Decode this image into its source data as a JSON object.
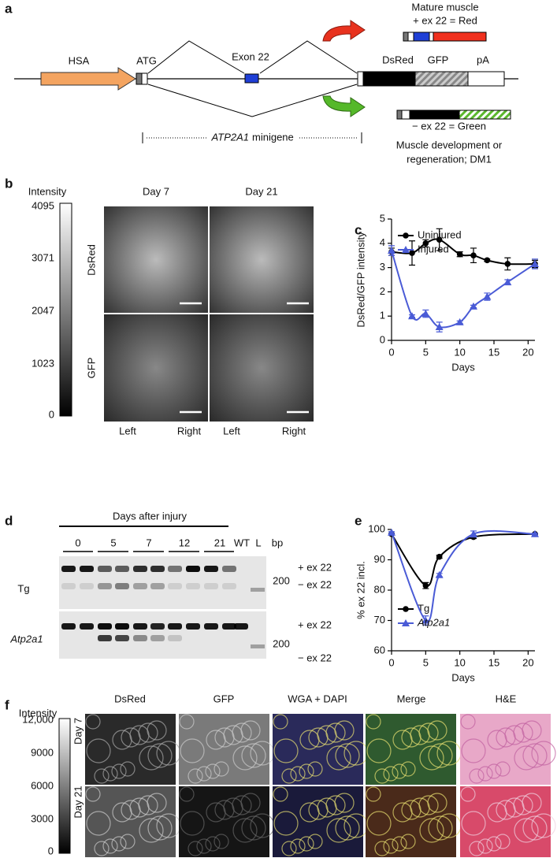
{
  "panel_labels": [
    "a",
    "b",
    "c",
    "d",
    "e",
    "f"
  ],
  "panel_a": {
    "mature_1": "Mature muscle",
    "mature_2": "+ ex 22 = Red",
    "hsa": "HSA",
    "atg": "ATG",
    "exon": "Exon 22",
    "dsred": "DsRed",
    "gfp": "GFP",
    "pa": "pA",
    "minigene_gene": "ATP2A1",
    "minigene_word": "minigene",
    "green_1": "− ex 22 = Green",
    "green_2": "Muscle development or",
    "green_3": "regeneration; DM1"
  },
  "panel_b": {
    "scale_title": "Intensity",
    "scale_ticks": [
      4095,
      3071,
      2047,
      1023,
      0
    ],
    "columns": [
      "Day 7",
      "Day 21"
    ],
    "rows": [
      "DsRed",
      "GFP"
    ],
    "sides": [
      "Left",
      "Right",
      "Left",
      "Right"
    ]
  },
  "panel_d": {
    "title": "Days after injury",
    "lanes": [
      "0",
      "5",
      "7",
      "12",
      "21",
      "WT",
      "L",
      "bp"
    ],
    "rows": [
      "Tg",
      "Atp2a1"
    ],
    "band_labels": [
      [
        "+ ex 22",
        "200",
        "− ex 22"
      ],
      [
        "+ ex 22",
        "200",
        "− ex 22"
      ]
    ]
  },
  "panel_f": {
    "scale_title": "Intensity",
    "scale_ticks": [
      "12,000",
      "9000",
      "6000",
      "3000",
      "0"
    ],
    "columns": [
      "DsRed",
      "GFP",
      "WGA + DAPI",
      "Merge",
      "H&E"
    ],
    "rows": [
      "Day 7",
      "Day 21"
    ]
  },
  "chart_data": [
    {
      "type": "line",
      "xlabel": "Days",
      "ylabel": "DsRed/GFP intensity",
      "xlim": [
        0,
        21
      ],
      "xticks": [
        0,
        5,
        10,
        15,
        20
      ],
      "ylim": [
        0,
        5
      ],
      "yticks": [
        0,
        1,
        2,
        3,
        4,
        5
      ],
      "legend": "upper right",
      "x": [
        0,
        3,
        5,
        7,
        10,
        12,
        14,
        17,
        21
      ],
      "series": [
        {
          "name": "Uninjured",
          "color": "#000000",
          "marker": "circle",
          "values": [
            3.65,
            3.6,
            4.0,
            4.15,
            3.55,
            3.5,
            3.3,
            3.15,
            3.15
          ],
          "errors": [
            0.15,
            0.5,
            0.15,
            0.45,
            0.1,
            0.3,
            0.05,
            0.25,
            0.15
          ]
        },
        {
          "name": "Injured",
          "color": "#4a5bd6",
          "marker": "triangle",
          "values": [
            3.7,
            1.0,
            1.1,
            0.55,
            0.75,
            1.4,
            1.8,
            2.4,
            3.15
          ],
          "errors": [
            0.2,
            0.05,
            0.15,
            0.2,
            0.05,
            0.05,
            0.15,
            0.1,
            0.2
          ]
        }
      ]
    },
    {
      "type": "line",
      "xlabel": "Days",
      "ylabel": "% ex 22 incl.",
      "xlim": [
        0,
        21
      ],
      "xticks": [
        0,
        5,
        10,
        15,
        20
      ],
      "ylim": [
        60,
        100
      ],
      "yticks": [
        60,
        70,
        80,
        90,
        100
      ],
      "legend": "lower right",
      "x": [
        0,
        5,
        7,
        12,
        21
      ],
      "series": [
        {
          "name": "Tg",
          "color": "#000000",
          "marker": "circle",
          "values": [
            98.5,
            81.5,
            91,
            97.5,
            98.5
          ],
          "errors": [
            0.3,
            1,
            0.5,
            0.5,
            0.3
          ]
        },
        {
          "name": "Atp2a1",
          "color": "#4a5bd6",
          "marker": "triangle",
          "values": [
            99,
            70,
            85,
            98.5,
            98.5
          ],
          "errors": [
            0.3,
            1.5,
            0.5,
            1,
            0.3
          ]
        }
      ]
    }
  ]
}
